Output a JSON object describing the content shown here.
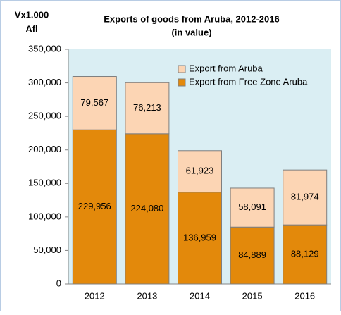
{
  "chart_data": {
    "type": "stacked-bar",
    "title": "Exports of goods from Aruba, 2012-2016",
    "subtitle": "(in value)",
    "y_label": [
      "Vx1.000",
      "Afl"
    ],
    "categories": [
      "2012",
      "2013",
      "2014",
      "2015",
      "2016"
    ],
    "series": [
      {
        "name": "Export from Free Zone Aruba",
        "color": "#e3890b",
        "values": [
          229956,
          224080,
          136959,
          84889,
          88129
        ],
        "value_labels": [
          "229,956",
          "224,080",
          "136,959",
          "84,889",
          "88,129"
        ]
      },
      {
        "name": "Export from Aruba",
        "color": "#fcd5b4",
        "values": [
          79567,
          76213,
          61923,
          58091,
          81974
        ],
        "value_labels": [
          "79,567",
          "76,213",
          "61,923",
          "58,091",
          "81,974"
        ]
      }
    ],
    "ylim": [
      0,
      350000
    ],
    "yticks": [
      0,
      {
        "value": 50000,
        "label": "50,000"
      },
      {
        "value": 100000,
        "label": "100,000"
      },
      {
        "value": 150000,
        "label": "150,000"
      },
      {
        "value": 200000,
        "label": "200,000"
      },
      {
        "value": 250000,
        "label": "250,000"
      },
      {
        "value": 300000,
        "label": "300,000"
      },
      {
        "value": 350000,
        "label": "350,000"
      }
    ],
    "legend": "top-right"
  }
}
